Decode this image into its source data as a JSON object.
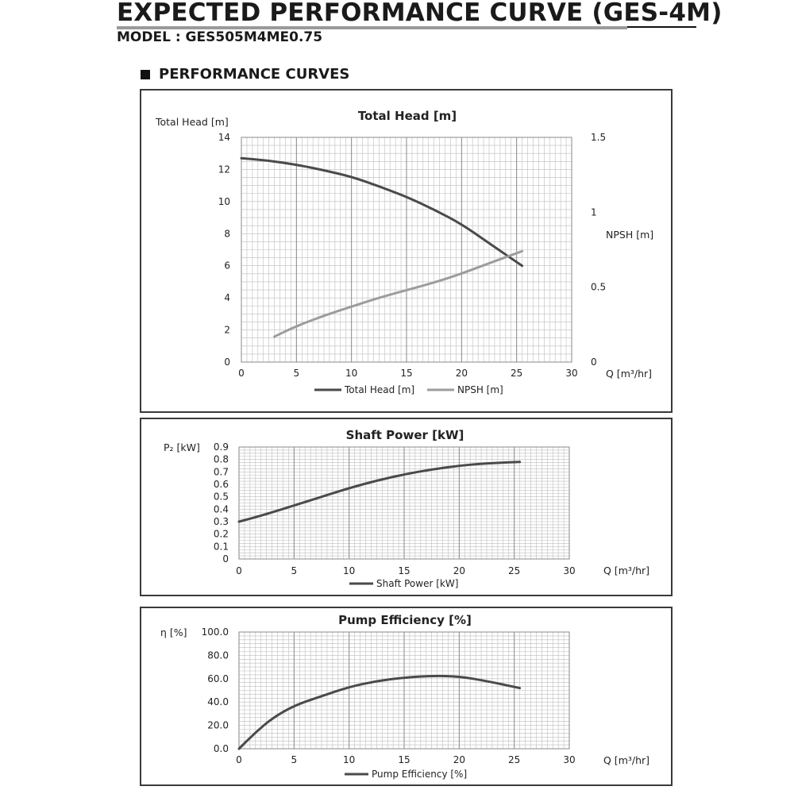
{
  "header": {
    "title": "EXPECTED PERFORMANCE CURVE (GES-4M)",
    "model": "MODEL : GES505M4ME0.75",
    "section": "PERFORMANCE CURVES"
  },
  "colors": {
    "dark_curve": "#4a4a4a",
    "light_curve": "#9c9c9c",
    "grid": "#bdbdbd",
    "frame": "#3a3a3a"
  },
  "chart_data": [
    {
      "type": "line",
      "title": "Total Head [m]",
      "ylabel": "Total Head [m]",
      "y2label": "NPSH [m]",
      "xlabel": "Q [m³/hr]",
      "xlim": [
        0,
        30
      ],
      "ylim": [
        0,
        14
      ],
      "y2lim": [
        0,
        1.5
      ],
      "x_ticks": [
        "0",
        "5",
        "10",
        "15",
        "20",
        "25",
        "30"
      ],
      "y_ticks": [
        "0",
        "2",
        "4",
        "6",
        "8",
        "10",
        "12",
        "14"
      ],
      "y2_ticks": [
        "0",
        "0.5",
        "1",
        "1.5"
      ],
      "grid": true,
      "legend_position": "bottom",
      "series": [
        {
          "name": "Total Head [m]",
          "axis": "left",
          "color": "#4a4a4a",
          "x": [
            0,
            2.5,
            5,
            7.5,
            10,
            12.5,
            15,
            17.5,
            20,
            22.5,
            25.5
          ],
          "y": [
            12.7,
            12.55,
            12.3,
            11.95,
            11.55,
            10.95,
            10.3,
            9.5,
            8.6,
            7.4,
            6.0
          ]
        },
        {
          "name": "NPSH [m]",
          "axis": "right",
          "color": "#9c9c9c",
          "x": [
            3,
            5,
            7.5,
            10,
            12.5,
            15,
            17.5,
            20,
            22.5,
            25.5
          ],
          "y": [
            0.17,
            0.24,
            0.31,
            0.37,
            0.43,
            0.48,
            0.53,
            0.59,
            0.66,
            0.74
          ]
        }
      ]
    },
    {
      "type": "line",
      "title": "Shaft Power [kW]",
      "ylabel": "P₂ [kW]",
      "xlabel": "Q [m³/hr]",
      "xlim": [
        0,
        30
      ],
      "ylim": [
        0,
        0.9
      ],
      "x_ticks": [
        "0",
        "5",
        "10",
        "15",
        "20",
        "25",
        "30"
      ],
      "y_ticks": [
        "0",
        "0.1",
        "0.2",
        "0.3",
        "0.4",
        "0.5",
        "0.6",
        "0.7",
        "0.8",
        "0.9"
      ],
      "grid": true,
      "legend_position": "bottom",
      "series": [
        {
          "name": "Shaft Power [kW]",
          "color": "#4a4a4a",
          "x": [
            0,
            2.5,
            5,
            7.5,
            10,
            12.5,
            15,
            17.5,
            20,
            22.5,
            25.5
          ],
          "y": [
            0.3,
            0.36,
            0.43,
            0.5,
            0.57,
            0.63,
            0.68,
            0.72,
            0.75,
            0.77,
            0.78
          ]
        }
      ]
    },
    {
      "type": "line",
      "title": "Pump Efficiency [%]",
      "ylabel": "η [%]",
      "xlabel": "Q [m³/hr]",
      "xlim": [
        0,
        30
      ],
      "ylim": [
        0,
        100
      ],
      "x_ticks": [
        "0",
        "5",
        "10",
        "15",
        "20",
        "25",
        "30"
      ],
      "y_ticks": [
        "0.0",
        "20.0",
        "40.0",
        "60.0",
        "80.0",
        "100.0"
      ],
      "grid": true,
      "legend_position": "bottom",
      "series": [
        {
          "name": "Pump Efficiency [%]",
          "color": "#4a4a4a",
          "x": [
            0,
            1.5,
            3,
            5,
            7.5,
            10,
            12.5,
            15,
            17.5,
            20,
            22.5,
            25.5
          ],
          "y": [
            0,
            14,
            26,
            37,
            45,
            53,
            58,
            61,
            62.5,
            62,
            58,
            52
          ]
        }
      ]
    }
  ]
}
